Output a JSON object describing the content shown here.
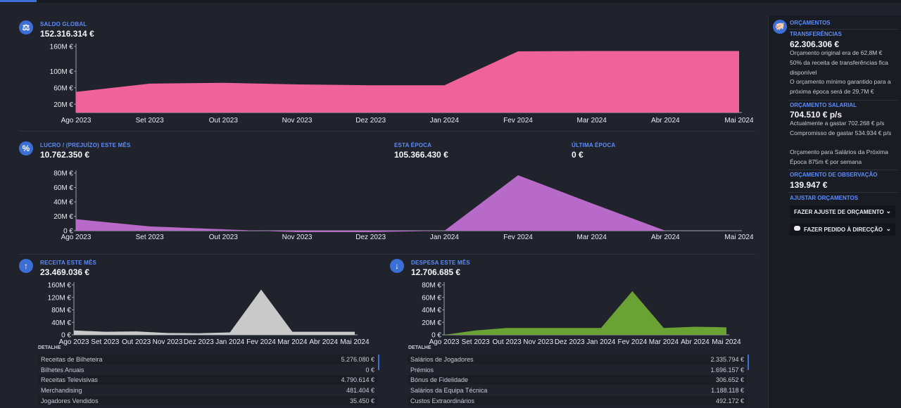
{
  "colors": {
    "accent": "#3b6fd6",
    "label": "#5b8cff",
    "pink": "#f0639a",
    "purple": "#b76ac7",
    "grey": "#c9c9c9",
    "green": "#6aa334"
  },
  "saldo": {
    "label": "SALDO GLOBAL",
    "value": "152.316.314 €",
    "icon": "balance-scale-icon"
  },
  "lucro": {
    "label": "LUCRO / (PREJUÍZO) ESTE MÊS",
    "value": "10.762.350 €",
    "icon": "percent-icon",
    "season_label": "ESTA ÉPOCA",
    "season_value": "105.366.430 €",
    "last_label": "ÚLTIMA ÉPOCA",
    "last_value": "0 €"
  },
  "receita": {
    "label": "RECEITA ESTE MÊS",
    "value": "23.469.036 €",
    "icon": "arrow-up-icon",
    "detail_title": "DETALHE",
    "rows": [
      {
        "label": "Receitas de Bilheteira",
        "value": "5.276.080 €"
      },
      {
        "label": "Bilhetes Anuais",
        "value": "0 €"
      },
      {
        "label": "Receitas Televisivas",
        "value": "4.790.614 €"
      },
      {
        "label": "Merchandising",
        "value": "481.404 €"
      },
      {
        "label": "Jogadores Vendidos",
        "value": "35.450 €"
      }
    ]
  },
  "despesa": {
    "label": "DESPESA ESTE MÊS",
    "value": "12.706.685 €",
    "icon": "arrow-down-icon",
    "detail_title": "DETALHE",
    "rows": [
      {
        "label": "Salários de Jogadores",
        "value": "2.335.794 €"
      },
      {
        "label": "Prémios",
        "value": "1.696.157 €"
      },
      {
        "label": "Bónus de Fidelidade",
        "value": "306.652 €"
      },
      {
        "label": "Salários da Equipa Técnica",
        "value": "1.188.118 €"
      },
      {
        "label": "Custos Extraordinários",
        "value": "492.172 €"
      }
    ]
  },
  "sidebar": {
    "title": "ORÇAMENTOS",
    "icon": "piggy-bank-icon",
    "transfer_label": "TRANSFERÊNCIAS",
    "transfer_value": "62.306.306 €",
    "transfer_note1": "Orçamento original era de 62,8M €",
    "transfer_note2": "50% da receita de transferências fica disponível",
    "transfer_note3": "O orçamento mínimo garantido para a próxima época será de 29,7M €",
    "wage_label": "ORÇAMENTO SALARIAL",
    "wage_value": "704.510 € p/s",
    "wage_note1": "Actualmente a gastar 702.268 € p/s",
    "wage_note2": "Compromisso de gastar 534.934 € p/s",
    "wage_note3": "Orçamento para Salários da Próxima Época 875m € por semana",
    "scout_label": "ORÇAMENTO DE OBSERVAÇÃO",
    "scout_value": "139.947 €",
    "adjust_label": "AJUSTAR ORÇAMENTOS",
    "btn_adjust": "FAZER AJUSTE DE ORÇAMENTO",
    "btn_request": "FAZER PEDIDO À DIRECÇÃO"
  },
  "chart_data": [
    {
      "id": "saldo",
      "type": "area",
      "categories": [
        "Ago 2023",
        "Set 2023",
        "Out 2023",
        "Nov 2023",
        "Dez 2023",
        "Jan 2024",
        "Fev 2024",
        "Mar 2024",
        "Abr 2024",
        "Mai 2024"
      ],
      "values": [
        50,
        70,
        72,
        68,
        66,
        66,
        148,
        149,
        149,
        149
      ],
      "yticks": [
        {
          "v": 20,
          "t": "20M €"
        },
        {
          "v": 60,
          "t": "60M €"
        },
        {
          "v": 100,
          "t": "100M €"
        },
        {
          "v": 160,
          "t": "160M €"
        }
      ],
      "ylim": [
        0,
        160
      ],
      "color": "#f0639a"
    },
    {
      "id": "lucro",
      "type": "area",
      "categories": [
        "Ago 2023",
        "Set 2023",
        "Out 2023",
        "Nov 2023",
        "Dez 2023",
        "Jan 2024",
        "Fev 2024",
        "Mar 2024",
        "Abr 2024",
        "Mai 2024"
      ],
      "values": [
        16,
        6,
        2,
        -2,
        -2,
        0,
        77,
        38,
        0,
        0
      ],
      "yticks": [
        {
          "v": 0,
          "t": "0 €"
        },
        {
          "v": 20,
          "t": "20M €"
        },
        {
          "v": 40,
          "t": "40M €"
        },
        {
          "v": 60,
          "t": "60M €"
        },
        {
          "v": 80,
          "t": "80M €"
        }
      ],
      "ylim": [
        0,
        80
      ],
      "color": "#b76ac7"
    },
    {
      "id": "receita",
      "type": "area",
      "categories": [
        "Ago 2023",
        "Set 2023",
        "Out 2023",
        "Nov 2023",
        "Dez 2023",
        "Jan 2024",
        "Fev 2024",
        "Mar 2024",
        "Abr 2024",
        "Mai 2024"
      ],
      "values": [
        14,
        10,
        11,
        6,
        5,
        8,
        145,
        10,
        10,
        10
      ],
      "yticks": [
        {
          "v": 0,
          "t": "0 €"
        },
        {
          "v": 40,
          "t": "40M €"
        },
        {
          "v": 80,
          "t": "80M €"
        },
        {
          "v": 120,
          "t": "120M €"
        },
        {
          "v": 160,
          "t": "160M €"
        }
      ],
      "ylim": [
        0,
        160
      ],
      "color": "#c9c9c9"
    },
    {
      "id": "despesa",
      "type": "area",
      "categories": [
        "Ago 2023",
        "Set 2023",
        "Out 2023",
        "Nov 2023",
        "Dez 2023",
        "Jan 2024",
        "Fev 2024",
        "Mar 2024",
        "Abr 2024",
        "Mai 2024"
      ],
      "values": [
        0,
        7,
        11,
        11,
        11,
        11,
        70,
        11,
        13,
        12
      ],
      "yticks": [
        {
          "v": 0,
          "t": "0 €"
        },
        {
          "v": 20,
          "t": "20M €"
        },
        {
          "v": 40,
          "t": "40M €"
        },
        {
          "v": 60,
          "t": "60M €"
        },
        {
          "v": 80,
          "t": "80M €"
        }
      ],
      "ylim": [
        0,
        80
      ],
      "color": "#6aa334"
    }
  ]
}
